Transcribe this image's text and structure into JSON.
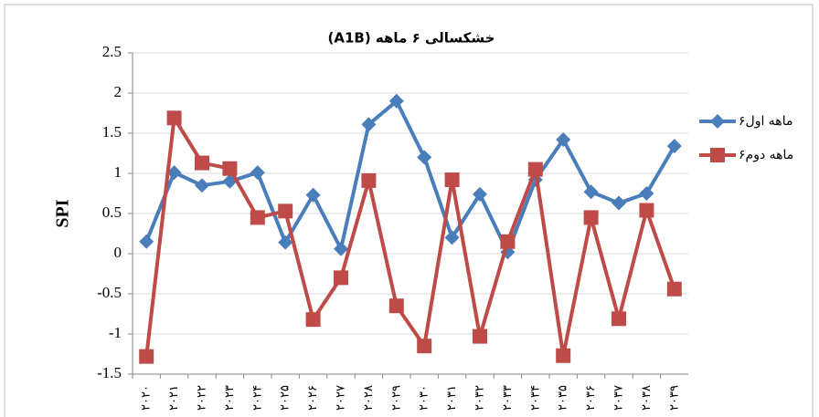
{
  "chart_data": {
    "type": "line",
    "title": "خشکسالی ۶ ماهه (A1B)",
    "y_label": "SPI",
    "categories": [
      "۲۰۲۰",
      "۲۰۲۱",
      "۲۰۲۲",
      "۲۰۲۳",
      "۲۰۲۴",
      "۲۰۲۵",
      "۲۰۲۶",
      "۲۰۲۷",
      "۲۰۲۸",
      "۲۰۲۹",
      "۲۰۳۰",
      "۲۰۳۱",
      "۲۰۳۲",
      "۲۰۳۳",
      "۲۰۳۴",
      "۲۰۳۵",
      "۲۰۳۶",
      "۲۰۳۷",
      "۲۰۳۸",
      "۲۰۳۹"
    ],
    "series": [
      {
        "name": "۶ماهه اول",
        "color": "#4a7ebb",
        "marker": "diamond",
        "values": [
          0.15,
          1.01,
          0.85,
          0.9,
          1.01,
          0.14,
          0.73,
          0.06,
          1.61,
          1.9,
          1.2,
          0.2,
          0.74,
          0.02,
          0.92,
          1.42,
          0.77,
          0.63,
          0.75,
          1.34
        ]
      },
      {
        "name": "۶ماهه دوم",
        "color": "#be4b48",
        "marker": "square",
        "values": [
          -1.28,
          1.69,
          1.13,
          1.06,
          0.45,
          0.53,
          -0.82,
          -0.3,
          0.91,
          -0.65,
          -1.15,
          0.92,
          -1.03,
          0.15,
          1.05,
          -1.27,
          0.45,
          -0.81,
          0.54,
          -0.44
        ]
      }
    ],
    "ylim": [
      -1.5,
      2.5
    ],
    "yticks": [
      -1.5,
      -1,
      -0.5,
      0,
      0.5,
      1,
      1.5,
      2,
      2.5
    ],
    "grid": true,
    "legend": "right"
  }
}
